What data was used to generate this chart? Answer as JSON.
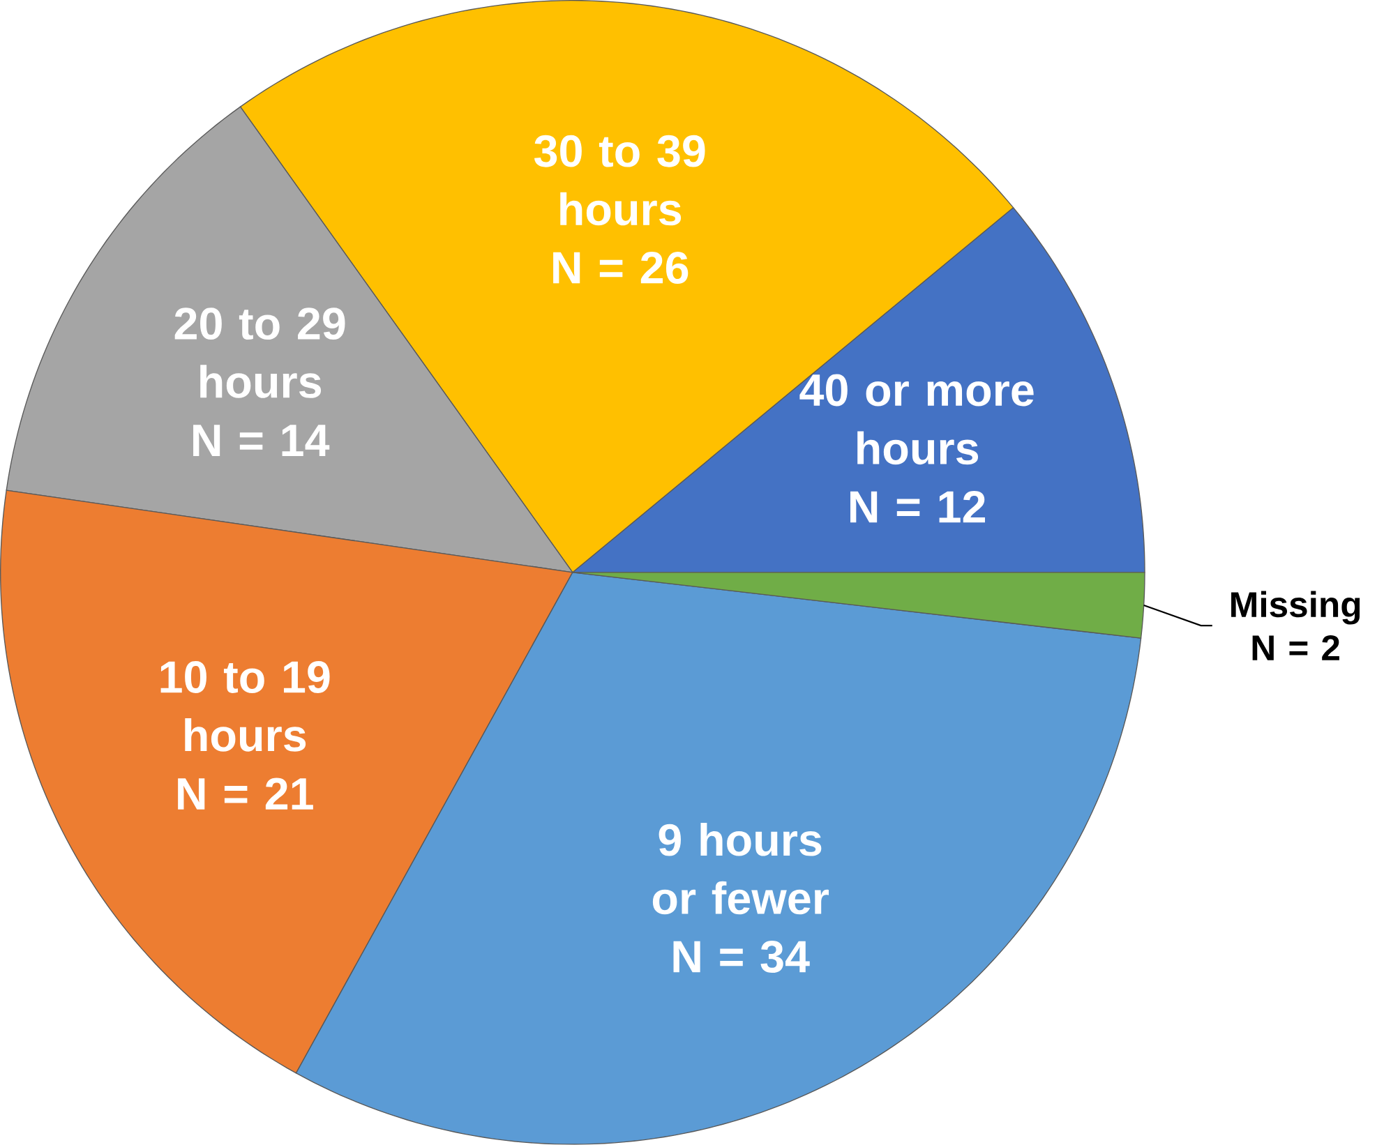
{
  "chart_data": {
    "type": "pie",
    "categories": [
      "40 or more hours",
      "30 to 39 hours",
      "20 to 29 hours",
      "10 to 19 hours",
      "9 hours or fewer",
      "Missing"
    ],
    "values": [
      12,
      26,
      14,
      21,
      34,
      2
    ],
    "value_labels": [
      "N = 12",
      "N = 26",
      "N = 14",
      "N = 21",
      "N = 34",
      "N = 2"
    ],
    "colors": [
      "#4472c4",
      "#ffc000",
      "#a5a5a5",
      "#ed7d31",
      "#5b9bd5",
      "#70ad47"
    ]
  }
}
